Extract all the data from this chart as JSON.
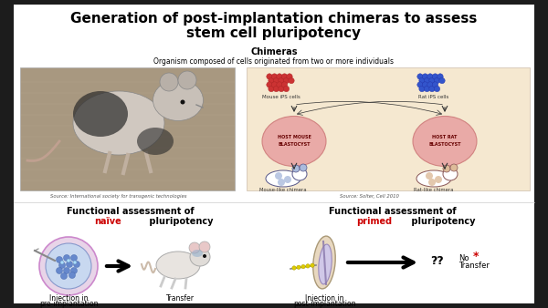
{
  "title_line1": "Generation of post-implantation chimeras to assess",
  "title_line2": "stem cell pluripotency",
  "chimeras_title": "Chimeras",
  "chimeras_subtitle": "Organism composed of cells originated from two or more individuals",
  "source_left": "Source: International society for transgenic technologies",
  "source_right": "Source: Solter, Cell 2010",
  "naive_text1": "Functional assessment of",
  "naive_word": "naïve",
  "naive_text3": " pluripotency",
  "primed_text1": "Functional assessment of",
  "primed_word": "primed",
  "primed_text3": " pluripotency",
  "injection_pre_line1": "Injection in",
  "injection_pre_line2": "pre-implantation",
  "transfer_label": "Transfer",
  "injection_post_line1": "Injection in",
  "injection_post_line2": "post-implantation",
  "no_transfer": "No",
  "transfer_label2": "Transfer",
  "question_marks": "??",
  "red_color": "#cc0000",
  "black_color": "#000000",
  "outer_bg": "#1c1c1c",
  "slide_bg": "#ffffff",
  "photo_bg": "#a89880",
  "diag_bg": "#f5e8d0",
  "mouse_ips_color": "#cc3333",
  "rat_ips_color": "#3355cc",
  "blast_fill": "#e8a0a0",
  "blast_edge": "#cc7777",
  "chimera_left_color": "#aabbdd",
  "chimera_right_color": "#ddbb99",
  "blasto_fill": "#c8d8f0",
  "blasto_edge": "#8899cc",
  "icm_fill": "#6688cc",
  "embryo_outer": "#e8d8c0",
  "embryo_inner": "#d0c8e8",
  "embryo_edge": "#aa9977",
  "needle_color": "#888888",
  "arrow_color": "#111111",
  "yellow_dot": "#ddcc00"
}
